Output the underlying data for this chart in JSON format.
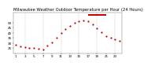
{
  "title": "Milwaukee Weather Outdoor Temperature per Hour (24 Hours)",
  "hours": [
    1,
    2,
    3,
    4,
    5,
    6,
    7,
    8,
    9,
    10,
    11,
    12,
    13,
    14,
    15,
    16,
    17,
    18,
    19,
    20,
    21,
    22,
    23,
    24
  ],
  "temperatures": [
    28.5,
    27.2,
    26.0,
    25.5,
    25.0,
    24.5,
    24.0,
    27.5,
    31.0,
    35.5,
    39.5,
    43.5,
    46.5,
    49.5,
    51.5,
    52.5,
    51.0,
    48.0,
    44.5,
    40.5,
    37.0,
    35.0,
    33.5,
    32.5
  ],
  "dot_color": "#cc0000",
  "bg_color": "#ffffff",
  "grid_color": "#999999",
  "bar_color": "#cc0000",
  "bar_y_min": 56.5,
  "bar_y_max": 58.5,
  "bar_x_start": 17,
  "bar_x_end": 21,
  "ylim": [
    20,
    60
  ],
  "ytick_values": [
    25,
    30,
    35,
    40,
    45,
    50
  ],
  "ytick_labels": [
    "25",
    "30",
    "35",
    "40",
    "45",
    "50"
  ],
  "xlim": [
    0.5,
    24.5
  ],
  "xtick_positions": [
    1,
    3,
    5,
    7,
    9,
    11,
    13,
    15,
    17,
    19,
    21,
    23
  ],
  "xtick_labels": [
    "1",
    "3",
    "5",
    "7",
    "9",
    "11",
    "13",
    "15",
    "17",
    "19",
    "21",
    "23"
  ],
  "vgrid_positions": [
    3,
    7,
    11,
    15,
    19,
    23
  ],
  "dot_size": 2.5,
  "title_fontsize": 3.8,
  "tick_fontsize": 3.0
}
